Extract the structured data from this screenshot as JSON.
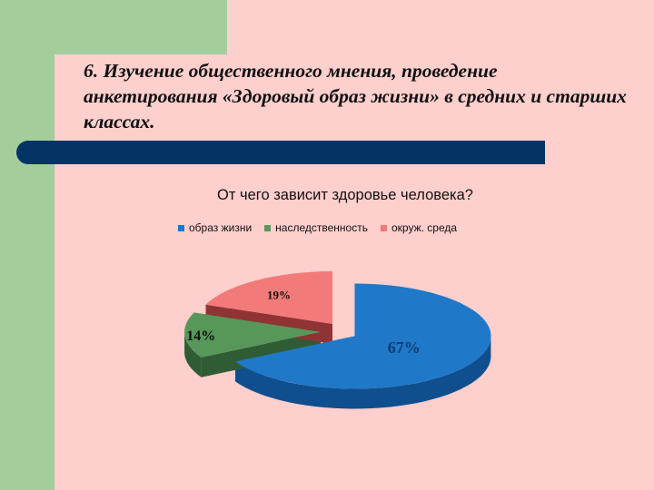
{
  "slide": {
    "title": "6. Изучение общественного мнения, проведение анкетирования «Здоровый образ жизни» в средних и старших классах."
  },
  "chart_data": {
    "type": "pie",
    "title": "От чего зависит здоровье человека?",
    "categories": [
      "образ жизни",
      "наследственность",
      "окруж. среда"
    ],
    "values": [
      67,
      14,
      19
    ],
    "labels": [
      "67%",
      "14%",
      "19%"
    ],
    "colors": [
      "#1f78c8",
      "#57985a",
      "#f27a78"
    ],
    "side_colors": [
      "#0f4f8e",
      "#305c35",
      "#8f3334"
    ],
    "label_colors": [
      "#0f3e73",
      "#111111",
      "#111111"
    ],
    "legend_position": "top",
    "exploded": true,
    "three_d": true
  }
}
